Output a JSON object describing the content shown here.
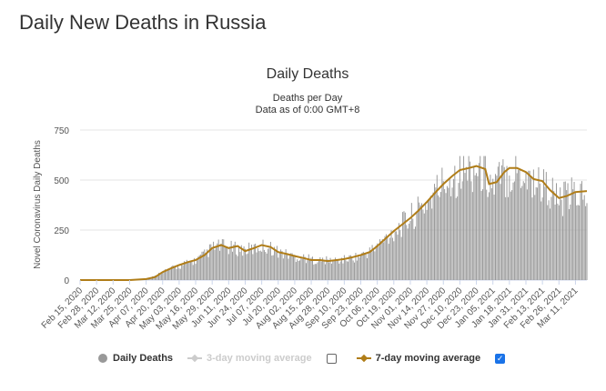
{
  "page": {
    "title": "Daily New Deaths in Russia"
  },
  "chart_data": {
    "type": "bar",
    "title": "Daily Deaths",
    "subtitle_line1": "Deaths per Day",
    "subtitle_line2": "Data as of 0:00 GMT+8",
    "ylabel": "Novel Coronavirus Daily Deaths",
    "xlabel": "",
    "ylim": [
      0,
      750
    ],
    "yticks": [
      0,
      250,
      500,
      750
    ],
    "grid": true,
    "legend_placement": "bottom",
    "x_start": "2020-02-15",
    "x_end": "2021-03-20",
    "xtick_labels": [
      "Feb 15, 2020",
      "Feb 28, 2020",
      "Mar 12, 2020",
      "Mar 25, 2020",
      "Apr 07, 2020",
      "Apr 20, 2020",
      "May 03, 2020",
      "May 16, 2020",
      "May 29, 2020",
      "Jun 11, 2020",
      "Jun 24, 2020",
      "Jul 07, 2020",
      "Jul 20, 2020",
      "Aug 02, 2020",
      "Aug 15, 2020",
      "Aug 28, 2020",
      "Sep 10, 2020",
      "Sep 23, 2020",
      "Oct 06, 2020",
      "Oct 19, 2020",
      "Nov 01, 2020",
      "Nov 14, 2020",
      "Nov 27, 2020",
      "Dec 10, 2020",
      "Dec 23, 2020",
      "Jan 05, 2021",
      "Jan 18, 2021",
      "Jan 31, 2021",
      "Feb 13, 2021",
      "Feb 26, 2021",
      "Mar 11, 2021"
    ],
    "series": [
      {
        "name": "Daily Deaths",
        "type": "bar",
        "color": "#999999",
        "points": [
          [
            "2020-02-15",
            0
          ],
          [
            "2020-03-12",
            0
          ],
          [
            "2020-03-25",
            1
          ],
          [
            "2020-04-07",
            8
          ],
          [
            "2020-04-14",
            20
          ],
          [
            "2020-04-20",
            45
          ],
          [
            "2020-04-27",
            60
          ],
          [
            "2020-05-03",
            70
          ],
          [
            "2020-05-10",
            90
          ],
          [
            "2020-05-16",
            100
          ],
          [
            "2020-05-23",
            130
          ],
          [
            "2020-05-29",
            165
          ],
          [
            "2020-06-05",
            175
          ],
          [
            "2020-06-11",
            165
          ],
          [
            "2020-06-18",
            160
          ],
          [
            "2020-06-24",
            155
          ],
          [
            "2020-07-01",
            160
          ],
          [
            "2020-07-07",
            175
          ],
          [
            "2020-07-14",
            165
          ],
          [
            "2020-07-20",
            145
          ],
          [
            "2020-07-27",
            130
          ],
          [
            "2020-08-02",
            120
          ],
          [
            "2020-08-09",
            115
          ],
          [
            "2020-08-15",
            105
          ],
          [
            "2020-08-22",
            100
          ],
          [
            "2020-08-28",
            100
          ],
          [
            "2020-09-04",
            100
          ],
          [
            "2020-09-10",
            105
          ],
          [
            "2020-09-17",
            115
          ],
          [
            "2020-09-23",
            125
          ],
          [
            "2020-09-30",
            145
          ],
          [
            "2020-10-06",
            175
          ],
          [
            "2020-10-13",
            215
          ],
          [
            "2020-10-19",
            250
          ],
          [
            "2020-10-26",
            285
          ],
          [
            "2020-11-01",
            320
          ],
          [
            "2020-11-07",
            350
          ],
          [
            "2020-11-14",
            400
          ],
          [
            "2020-11-21",
            450
          ],
          [
            "2020-11-27",
            500
          ],
          [
            "2020-12-04",
            530
          ],
          [
            "2020-12-10",
            555
          ],
          [
            "2020-12-17",
            565
          ],
          [
            "2020-12-23",
            570
          ],
          [
            "2020-12-30",
            555
          ],
          [
            "2021-01-05",
            480
          ],
          [
            "2021-01-11",
            520
          ],
          [
            "2021-01-18",
            550
          ],
          [
            "2021-01-24",
            560
          ],
          [
            "2021-01-31",
            540
          ],
          [
            "2021-02-06",
            510
          ],
          [
            "2021-02-13",
            490
          ],
          [
            "2021-02-19",
            460
          ],
          [
            "2021-02-26",
            400
          ],
          [
            "2021-03-04",
            420
          ],
          [
            "2021-03-11",
            440
          ],
          [
            "2021-03-20",
            445
          ]
        ]
      },
      {
        "name": "3-day moving average",
        "type": "line",
        "color": "#cccccc",
        "visible": false
      },
      {
        "name": "7-day moving average",
        "type": "line",
        "color": "#b07d18",
        "visible": true,
        "points": [
          [
            "2020-02-15",
            0
          ],
          [
            "2020-03-25",
            0
          ],
          [
            "2020-04-07",
            5
          ],
          [
            "2020-04-14",
            15
          ],
          [
            "2020-04-20",
            40
          ],
          [
            "2020-04-27",
            60
          ],
          [
            "2020-05-03",
            75
          ],
          [
            "2020-05-10",
            90
          ],
          [
            "2020-05-16",
            100
          ],
          [
            "2020-05-23",
            125
          ],
          [
            "2020-05-29",
            160
          ],
          [
            "2020-06-05",
            175
          ],
          [
            "2020-06-11",
            160
          ],
          [
            "2020-06-18",
            170
          ],
          [
            "2020-06-24",
            145
          ],
          [
            "2020-07-01",
            160
          ],
          [
            "2020-07-07",
            175
          ],
          [
            "2020-07-14",
            165
          ],
          [
            "2020-07-20",
            140
          ],
          [
            "2020-07-27",
            130
          ],
          [
            "2020-08-02",
            120
          ],
          [
            "2020-08-09",
            110
          ],
          [
            "2020-08-15",
            100
          ],
          [
            "2020-08-22",
            100
          ],
          [
            "2020-08-28",
            95
          ],
          [
            "2020-09-04",
            100
          ],
          [
            "2020-09-10",
            105
          ],
          [
            "2020-09-17",
            115
          ],
          [
            "2020-09-23",
            125
          ],
          [
            "2020-09-30",
            140
          ],
          [
            "2020-10-06",
            170
          ],
          [
            "2020-10-13",
            210
          ],
          [
            "2020-10-19",
            245
          ],
          [
            "2020-10-26",
            280
          ],
          [
            "2020-11-01",
            310
          ],
          [
            "2020-11-07",
            345
          ],
          [
            "2020-11-14",
            390
          ],
          [
            "2020-11-21",
            440
          ],
          [
            "2020-11-27",
            480
          ],
          [
            "2020-12-04",
            520
          ],
          [
            "2020-12-10",
            550
          ],
          [
            "2020-12-17",
            560
          ],
          [
            "2020-12-23",
            570
          ],
          [
            "2020-12-30",
            555
          ],
          [
            "2021-01-02",
            480
          ],
          [
            "2021-01-08",
            490
          ],
          [
            "2021-01-14",
            540
          ],
          [
            "2021-01-18",
            560
          ],
          [
            "2021-01-24",
            560
          ],
          [
            "2021-01-31",
            540
          ],
          [
            "2021-02-06",
            505
          ],
          [
            "2021-02-13",
            495
          ],
          [
            "2021-02-19",
            450
          ],
          [
            "2021-02-26",
            410
          ],
          [
            "2021-03-04",
            420
          ],
          [
            "2021-03-11",
            440
          ],
          [
            "2021-03-20",
            445
          ]
        ]
      }
    ]
  },
  "legend": {
    "items": [
      {
        "label": "Daily Deaths",
        "enabled": true
      },
      {
        "label": "3-day moving average",
        "enabled": false,
        "checked": false
      },
      {
        "label": "7-day moving average",
        "enabled": true,
        "checked": true
      }
    ]
  }
}
